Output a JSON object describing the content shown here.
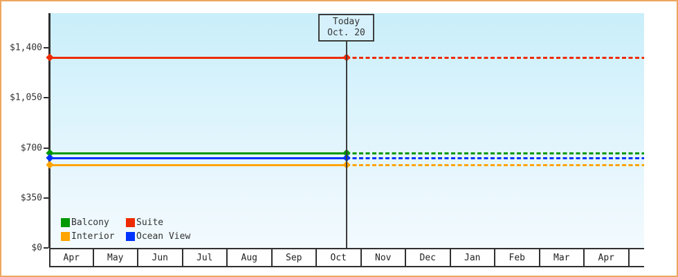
{
  "frame": {
    "border_color": "#eda75e"
  },
  "today_annotation": {
    "line1": "Today",
    "line2": "Oct. 20"
  },
  "chart_data": {
    "type": "line",
    "title": "",
    "xlabel": "",
    "ylabel": "",
    "x_categories": [
      "Apr",
      "May",
      "Jun",
      "Jul",
      "Aug",
      "Sep",
      "Oct",
      "Nov",
      "Dec",
      "Jan",
      "Feb",
      "Mar",
      "Apr"
    ],
    "y_tick_labels": [
      "$1,400",
      "$1,050",
      "$700",
      "$350",
      "$0"
    ],
    "y_tick_values": [
      1400,
      1050,
      700,
      350,
      0
    ],
    "ylim": [
      0,
      1400
    ],
    "grid": false,
    "today_marker": {
      "label": "Today",
      "date": "Oct. 20",
      "month": "Oct",
      "day": 20
    },
    "series": [
      {
        "name": "Suite",
        "color": "#ee2a00",
        "value": 1330,
        "style_before_today": "solid",
        "style_after_today": "dashed"
      },
      {
        "name": "Balcony",
        "color": "#009900",
        "value": 660,
        "style_before_today": "solid",
        "style_after_today": "dashed"
      },
      {
        "name": "Ocean View",
        "color": "#0033ff",
        "value": 625,
        "style_before_today": "solid",
        "style_after_today": "dashed"
      },
      {
        "name": "Interior",
        "color": "#ffa400",
        "value": 580,
        "style_before_today": "solid",
        "style_after_today": "dashed"
      }
    ],
    "legend": {
      "position": "bottom-left",
      "rows": [
        [
          "Balcony",
          "Suite"
        ],
        [
          "Interior",
          "Ocean View"
        ]
      ]
    }
  }
}
